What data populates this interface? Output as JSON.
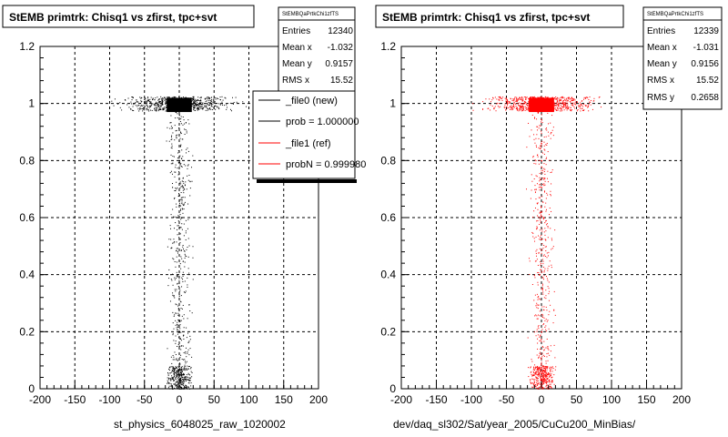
{
  "panels": [
    {
      "title": "StEMB primtrk: Chisq1 vs zfirst, tpc+svt",
      "xlabel": "st_physics_6048025_raw_1020002",
      "color": "#000000",
      "stats": {
        "name": "StEMBQaPrtkChi1zfTS",
        "rows": [
          {
            "label": "Entries",
            "value": "12340"
          },
          {
            "label": "Mean x",
            "value": "-1.032"
          },
          {
            "label": "Mean y",
            "value": "0.9157"
          },
          {
            "label": "RMS x",
            "value": "15.52"
          }
        ]
      },
      "legend": [
        {
          "label": "_file0 (new)",
          "color": "#000000"
        },
        {
          "label": "prob = 1.000000",
          "color": "#000000"
        },
        {
          "label": "_file1 (ref)",
          "color": "#ff0000"
        },
        {
          "label": "probN = 0.999980",
          "color": "#ff0000"
        }
      ]
    },
    {
      "title": "StEMB primtrk: Chisq1 vs zfirst, tpc+svt",
      "xlabel": "dev/daq_sl302/Sat/year_2005/CuCu200_MinBias/",
      "color": "#ff0000",
      "stats": {
        "name": "StEMBQaPrtkChi1zfTS",
        "rows": [
          {
            "label": "Entries",
            "value": "12339"
          },
          {
            "label": "Mean x",
            "value": "-1.031"
          },
          {
            "label": "Mean y",
            "value": "0.9156"
          },
          {
            "label": "RMS x",
            "value": "15.52"
          },
          {
            "label": "RMS y",
            "value": "0.2658"
          }
        ]
      }
    }
  ],
  "chart_data": [
    {
      "type": "scatter",
      "title": "StEMB primtrk: Chisq1 vs zfirst, tpc+svt",
      "xlabel": "st_physics_6048025_raw_1020002",
      "ylabel": "",
      "xlim": [
        -200,
        200
      ],
      "ylim": [
        0,
        1.2
      ],
      "xticks": [
        -200,
        -150,
        -100,
        -50,
        0,
        50,
        100,
        150,
        200
      ],
      "yticks": [
        0,
        0.2,
        0.4,
        0.6,
        0.8,
        1,
        1.2
      ],
      "grid": true,
      "color": "#000000",
      "series": [
        {
          "name": "_file0 (new)",
          "x": [
            -10,
            0,
            10,
            -5,
            5,
            -30,
            30,
            0,
            3,
            -3,
            0,
            5,
            -15,
            15,
            0
          ],
          "y": [
            1.0,
            0.98,
            1.01,
            0.97,
            1.0,
            0.99,
            1.0,
            0.8,
            0.6,
            0.4,
            0.2,
            0.05,
            0.02,
            0.03,
            0.01
          ]
        }
      ]
    },
    {
      "type": "scatter",
      "title": "StEMB primtrk: Chisq1 vs zfirst, tpc+svt",
      "xlabel": "dev/daq_sl302/Sat/year_2005/CuCu200_MinBias/",
      "ylabel": "",
      "xlim": [
        -200,
        200
      ],
      "ylim": [
        0,
        1.2
      ],
      "xticks": [
        -200,
        -150,
        -100,
        -50,
        0,
        50,
        100,
        150,
        200
      ],
      "yticks": [
        0,
        0.2,
        0.4,
        0.6,
        0.8,
        1,
        1.2
      ],
      "grid": true,
      "color": "#ff0000",
      "series": [
        {
          "name": "_file1 (ref)",
          "x": [
            -10,
            0,
            10,
            -5,
            5,
            -30,
            30,
            0,
            3,
            -3,
            0,
            5,
            -15,
            15,
            0
          ],
          "y": [
            1.0,
            0.98,
            1.01,
            0.97,
            1.0,
            0.99,
            1.0,
            0.8,
            0.6,
            0.4,
            0.2,
            0.05,
            0.02,
            0.03,
            0.01
          ]
        }
      ]
    }
  ]
}
